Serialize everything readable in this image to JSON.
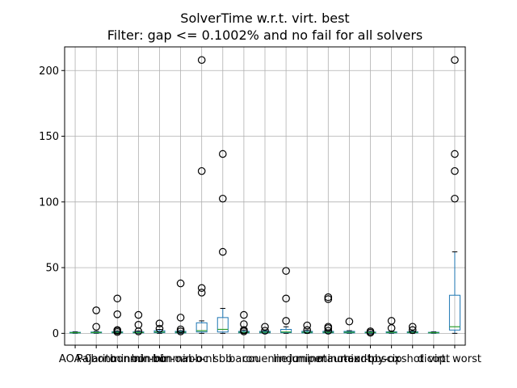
{
  "chart_data": {
    "type": "box",
    "title": "SolverTime w.r.t. virt. best",
    "subtitle": "Filter: gap <= 0.1002% and no fail for all solvers",
    "xlabel": "",
    "ylabel": "",
    "ylim": [
      -9,
      218
    ],
    "y_ticks": [
      0,
      50,
      100,
      150,
      200
    ],
    "grid": true,
    "legend": "none",
    "colors": {
      "box": "#1f77b4",
      "median": "#2ca02c",
      "whisker": "#000000",
      "flier": "#000000",
      "grid": "#b0b0b0"
    },
    "categories": [
      "AOA-0",
      "Pajarito",
      "bonmin-nl",
      "bonmin-bb",
      "bonmin-oa",
      "bonmin-oc",
      "bb-nl",
      "sbb",
      "baron",
      "couenne",
      "lindo",
      "juniper",
      "minotaur-ox",
      "minotaur-bb",
      "mindtpy-ox",
      "scip",
      "shot",
      "dicopt",
      "virt. worst"
    ],
    "series": [
      {
        "label": "AOA-0",
        "q1": 0.2,
        "median": 0.5,
        "q3": 0.8,
        "whislo": 0,
        "whishi": 1.2,
        "fliers": []
      },
      {
        "label": "Pajarito",
        "q1": 0.3,
        "median": 0.6,
        "q3": 1.0,
        "whislo": 0,
        "whishi": 1.5,
        "fliers": [
          5,
          17.5
        ]
      },
      {
        "label": "bonmin-nl",
        "q1": 0.3,
        "median": 0.7,
        "q3": 1.2,
        "whislo": 0,
        "whishi": 1.8,
        "fliers": [
          1,
          2,
          2.5,
          14.5,
          26.5
        ]
      },
      {
        "label": "bonmin-bb",
        "q1": 0.3,
        "median": 0.6,
        "q3": 1.1,
        "whislo": 0,
        "whishi": 1.8,
        "fliers": [
          1.5,
          6.5,
          14
        ]
      },
      {
        "label": "bonmin-oa",
        "q1": 0.5,
        "median": 1.0,
        "q3": 2.0,
        "whislo": 0,
        "whishi": 3.0,
        "fliers": [
          3.5,
          7.5
        ]
      },
      {
        "label": "bonmin-oc",
        "q1": 0.3,
        "median": 0.8,
        "q3": 1.5,
        "whislo": 0,
        "whishi": 2.0,
        "fliers": [
          1.5,
          3,
          12,
          38
        ]
      },
      {
        "label": "bb-nl",
        "q1": 1.0,
        "median": 2.0,
        "q3": 8.0,
        "whislo": 0,
        "whishi": 9.5,
        "fliers": [
          31,
          34.5,
          123.5,
          208
        ]
      },
      {
        "label": "sbb",
        "q1": 1.0,
        "median": 3.0,
        "q3": 12.0,
        "whislo": 0,
        "whishi": 19,
        "fliers": [
          62,
          102.5,
          136.5
        ]
      },
      {
        "label": "baron",
        "q1": 0.3,
        "median": 0.8,
        "q3": 1.5,
        "whislo": 0,
        "whishi": 2.5,
        "fliers": [
          1.5,
          2.5,
          7,
          14
        ]
      },
      {
        "label": "couenne",
        "q1": 0.3,
        "median": 0.8,
        "q3": 1.5,
        "whislo": 0,
        "whishi": 2.0,
        "fliers": [
          2,
          5
        ]
      },
      {
        "label": "lindo",
        "q1": 0.5,
        "median": 1.0,
        "q3": 3.0,
        "whislo": 0,
        "whishi": 5,
        "fliers": [
          9.5,
          26.5,
          47.5
        ]
      },
      {
        "label": "juniper",
        "q1": 0.3,
        "median": 0.8,
        "q3": 1.5,
        "whislo": 0,
        "whishi": 2.5,
        "fliers": [
          2.5,
          6
        ]
      },
      {
        "label": "minotaur-ox",
        "q1": 0.3,
        "median": 0.8,
        "q3": 1.5,
        "whislo": 0,
        "whishi": 2.5,
        "fliers": [
          2,
          4,
          5,
          26,
          27.5
        ]
      },
      {
        "label": "minotaur-bb",
        "q1": 0.3,
        "median": 0.8,
        "q3": 1.5,
        "whislo": 0,
        "whishi": 2.0,
        "fliers": [
          9
        ]
      },
      {
        "label": "mindtpy-ox",
        "q1": 0.2,
        "median": 0.6,
        "q3": 1.0,
        "whislo": 0,
        "whishi": 1.5,
        "fliers": [
          0.5,
          1.5
        ]
      },
      {
        "label": "scip",
        "q1": 0.3,
        "median": 0.7,
        "q3": 1.2,
        "whislo": 0,
        "whishi": 1.8,
        "fliers": [
          4,
          9.5
        ]
      },
      {
        "label": "shot",
        "q1": 0.3,
        "median": 0.7,
        "q3": 1.2,
        "whislo": 0,
        "whishi": 1.8,
        "fliers": [
          2.5,
          5
        ]
      },
      {
        "label": "dicopt",
        "q1": 0.2,
        "median": 0.5,
        "q3": 0.8,
        "whislo": 0,
        "whishi": 1.2,
        "fliers": []
      },
      {
        "label": "virt. worst",
        "q1": 2.5,
        "median": 5.0,
        "q3": 29.0,
        "whislo": 0,
        "whishi": 62,
        "fliers": [
          102.5,
          123.5,
          136.5,
          208
        ]
      }
    ]
  }
}
